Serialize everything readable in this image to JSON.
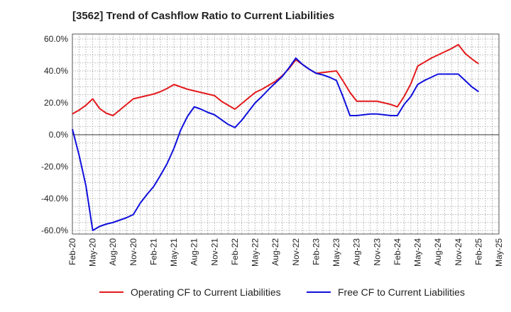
{
  "chart_data": {
    "type": "line",
    "title": "[3562]  Trend of Cashflow Ratio to Current Liabilities",
    "xlabel": "",
    "ylabel": "",
    "ylim": [
      -60,
      60
    ],
    "y_ticks": [
      -60,
      -40,
      -20,
      0,
      20,
      40,
      60
    ],
    "y_tick_labels": [
      "-60.0%",
      "-40.0%",
      "-20.0%",
      "0.0%",
      "20.0%",
      "40.0%",
      "60.0%"
    ],
    "x_tick_labels": [
      "Feb-20",
      "May-20",
      "Aug-20",
      "Nov-20",
      "Feb-21",
      "May-21",
      "Aug-21",
      "Nov-21",
      "Feb-22",
      "May-22",
      "Aug-22",
      "Nov-22",
      "Feb-23",
      "May-23",
      "Aug-23",
      "Nov-23",
      "Feb-24",
      "May-24",
      "Aug-24",
      "Nov-24",
      "Feb-25",
      "May-25"
    ],
    "grid": true,
    "legend_position": "bottom",
    "x": [
      "Feb-20",
      "Mar-20",
      "Apr-20",
      "May-20",
      "Jun-20",
      "Jul-20",
      "Aug-20",
      "Sep-20",
      "Oct-20",
      "Nov-20",
      "Dec-20",
      "Jan-21",
      "Feb-21",
      "Mar-21",
      "Apr-21",
      "May-21",
      "Jun-21",
      "Jul-21",
      "Aug-21",
      "Sep-21",
      "Oct-21",
      "Nov-21",
      "Dec-21",
      "Jan-22",
      "Feb-22",
      "Mar-22",
      "Apr-22",
      "May-22",
      "Jun-22",
      "Jul-22",
      "Aug-22",
      "Sep-22",
      "Oct-22",
      "Nov-22",
      "Dec-22",
      "Jan-23",
      "Feb-23",
      "Mar-23",
      "Apr-23",
      "May-23",
      "Jun-23",
      "Jul-23",
      "Aug-23",
      "Sep-23",
      "Oct-23",
      "Nov-23",
      "Dec-23",
      "Jan-24",
      "Feb-24",
      "Mar-24",
      "Apr-24",
      "May-24",
      "Jun-24",
      "Jul-24",
      "Aug-24",
      "Sep-24",
      "Oct-24",
      "Nov-24",
      "Dec-24",
      "Jan-25",
      "Feb-25"
    ],
    "series": [
      {
        "name": "Operating CF to Current Liabilities",
        "color": "#e31a1c",
        "values": [
          13,
          15.5,
          18.5,
          22.5,
          16.5,
          13.5,
          12,
          15.5,
          19,
          22.5,
          23.5,
          24.5,
          25.5,
          27,
          29,
          31.5,
          30,
          28.5,
          27.5,
          26.5,
          25.5,
          24.5,
          21,
          18.5,
          16,
          19.5,
          23,
          26.5,
          28.5,
          31,
          33.5,
          37,
          41.5,
          47,
          44,
          41,
          38.5,
          39,
          39.5,
          40,
          33.5,
          26.5,
          21,
          21,
          21,
          21,
          20,
          19,
          17.5,
          24,
          32,
          43,
          45.5,
          48,
          50,
          52,
          54,
          56.5,
          51,
          47.5,
          44.5
        ]
      },
      {
        "name": "Free CF to Current Liabilities",
        "color": "#1010dd",
        "values": [
          3.5,
          -13,
          -32,
          -60,
          -57.5,
          -56,
          -55,
          -53.5,
          -52,
          -50,
          -43,
          -37.5,
          -32.5,
          -25.5,
          -18,
          -8.5,
          3,
          11.5,
          17.5,
          16,
          14,
          12.5,
          9.5,
          6.5,
          4.5,
          9,
          14.5,
          20,
          24,
          28.5,
          32.5,
          36.5,
          42,
          48,
          44,
          41,
          38.5,
          37.5,
          36,
          34,
          23.5,
          12,
          12,
          12.5,
          13,
          13,
          12.5,
          12,
          12,
          19,
          24,
          31.5,
          34,
          36,
          38,
          38,
          38,
          38,
          34,
          30,
          27
        ]
      }
    ]
  }
}
